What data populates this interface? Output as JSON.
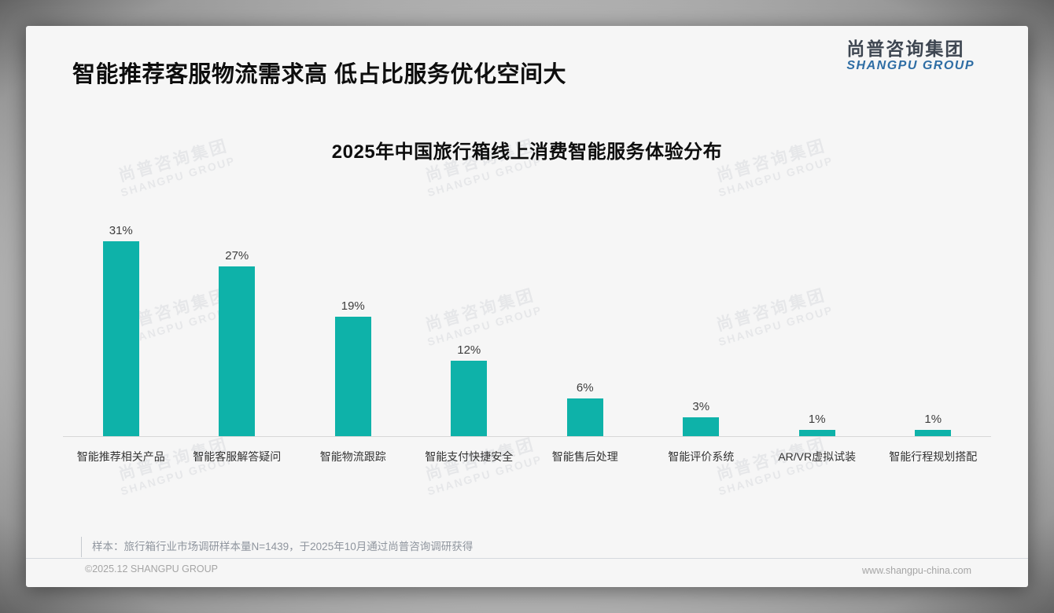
{
  "page": {
    "main_title": "智能推荐客服物流需求高 低占比服务优化空间大",
    "logo": {
      "cn": "尚普咨询集团",
      "en": "SHANGPU GROUP"
    },
    "watermark": {
      "cn": "尚普咨询集团",
      "en": "SHANGPU GROUP"
    },
    "sample_note": "样本：旅行箱行业市场调研样本量N=1439，于2025年10月通过尚普咨询调研获得",
    "footer_left": "©2025.12 SHANGPU GROUP",
    "footer_right": "www.shangpu-china.com"
  },
  "chart_data": {
    "type": "bar",
    "title": "2025年中国旅行箱线上消费智能服务体验分布",
    "categories": [
      "智能推荐相关产品",
      "智能客服解答疑问",
      "智能物流跟踪",
      "智能支付快捷安全",
      "智能售后处理",
      "智能评价系统",
      "AR/VR虚拟试装",
      "智能行程规划搭配"
    ],
    "values": [
      31,
      27,
      19,
      12,
      6,
      3,
      1,
      1
    ],
    "value_labels": [
      "31%",
      "27%",
      "19%",
      "12%",
      "6%",
      "3%",
      "1%",
      "1%"
    ],
    "unit": "%",
    "ylim": [
      0,
      35
    ],
    "grid": false,
    "legend": null,
    "bar_color": "#0eb2a9",
    "baseline_color": "#d8d8d8"
  }
}
